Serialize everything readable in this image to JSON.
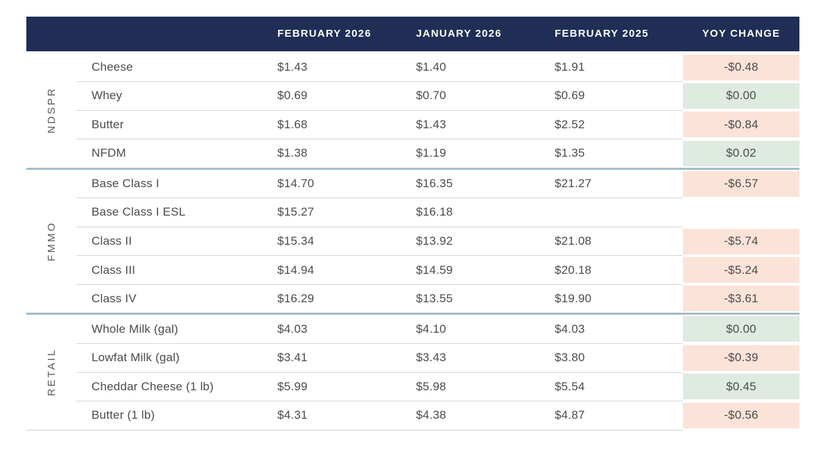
{
  "colors": {
    "header_bg": "#202e55",
    "yoy_negative_bg": "#fbe3d8",
    "yoy_positive_bg": "#dfeae1",
    "section_divider": "#a3bdc9",
    "row_border": "#d7d7d7",
    "body_text": "#4b4b4d",
    "section_label_text": "#58595b"
  },
  "chart_data": {
    "type": "table",
    "columns": [
      "FEBRUARY 2026",
      "JANUARY 2026",
      "FEBRUARY 2025",
      "YOY CHANGE"
    ],
    "sections": [
      {
        "label": "NDSPR",
        "rows": [
          {
            "item": "Cheese",
            "feb_2026": "$1.43",
            "jan_2026": "$1.40",
            "feb_2025": "$1.91",
            "yoy_change": "-$0.48",
            "yoy_color": "negative"
          },
          {
            "item": "Whey",
            "feb_2026": "$0.69",
            "jan_2026": "$0.70",
            "feb_2025": "$0.69",
            "yoy_change": "$0.00",
            "yoy_color": "positive"
          },
          {
            "item": "Butter",
            "feb_2026": "$1.68",
            "jan_2026": "$1.43",
            "feb_2025": "$2.52",
            "yoy_change": "-$0.84",
            "yoy_color": "negative"
          },
          {
            "item": "NFDM",
            "feb_2026": "$1.38",
            "jan_2026": "$1.19",
            "feb_2025": "$1.35",
            "yoy_change": "$0.02",
            "yoy_color": "positive"
          }
        ]
      },
      {
        "label": "FMMO",
        "rows": [
          {
            "item": "Base Class I",
            "feb_2026": "$14.70",
            "jan_2026": "$16.35",
            "feb_2025": "$21.27",
            "yoy_change": "-$6.57",
            "yoy_color": "negative"
          },
          {
            "item": "Base Class I ESL",
            "feb_2026": "$15.27",
            "jan_2026": "$16.18",
            "feb_2025": "",
            "yoy_change": "",
            "yoy_color": "none"
          },
          {
            "item": "Class II",
            "feb_2026": "$15.34",
            "jan_2026": "$13.92",
            "feb_2025": "$21.08",
            "yoy_change": "-$5.74",
            "yoy_color": "negative"
          },
          {
            "item": "Class III",
            "feb_2026": "$14.94",
            "jan_2026": "$14.59",
            "feb_2025": "$20.18",
            "yoy_change": "-$5.24",
            "yoy_color": "negative"
          },
          {
            "item": "Class IV",
            "feb_2026": "$16.29",
            "jan_2026": "$13.55",
            "feb_2025": "$19.90",
            "yoy_change": "-$3.61",
            "yoy_color": "negative"
          }
        ]
      },
      {
        "label": "RETAIL",
        "rows": [
          {
            "item": "Whole Milk (gal)",
            "feb_2026": "$4.03",
            "jan_2026": "$4.10",
            "feb_2025": "$4.03",
            "yoy_change": "$0.00",
            "yoy_color": "positive"
          },
          {
            "item": "Lowfat Milk (gal)",
            "feb_2026": "$3.41",
            "jan_2026": "$3.43",
            "feb_2025": "$3.80",
            "yoy_change": "-$0.39",
            "yoy_color": "negative"
          },
          {
            "item": "Cheddar Cheese (1 lb)",
            "feb_2026": "$5.99",
            "jan_2026": "$5.98",
            "feb_2025": "$5.54",
            "yoy_change": "$0.45",
            "yoy_color": "positive"
          },
          {
            "item": "Butter (1 lb)",
            "feb_2026": "$4.31",
            "jan_2026": "$4.38",
            "feb_2025": "$4.87",
            "yoy_change": "-$0.56",
            "yoy_color": "negative"
          }
        ]
      }
    ]
  }
}
